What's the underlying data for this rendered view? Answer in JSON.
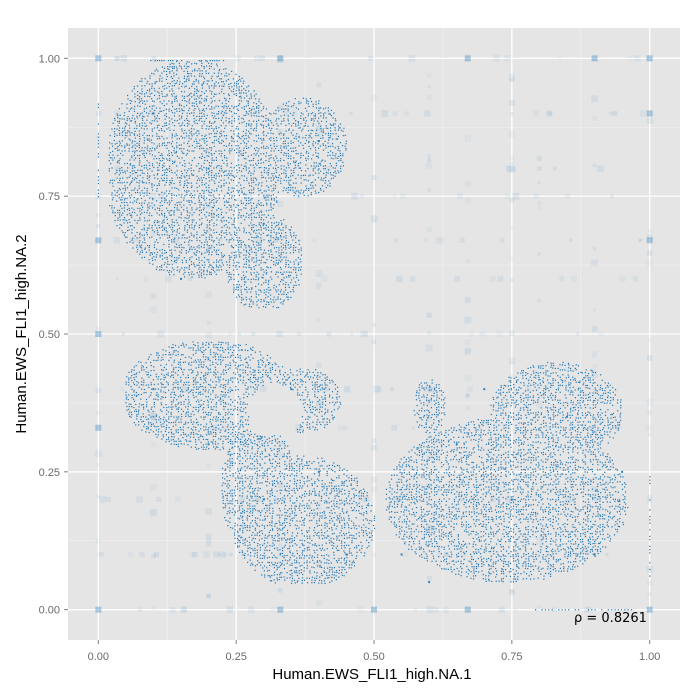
{
  "chart_data": {
    "type": "scatter",
    "title": "",
    "xlabel": "Human.EWS_FLI1_high.NA.1",
    "ylabel": "Human.EWS_FLI1_high.NA.2",
    "xlim": [
      -0.055,
      1.055
    ],
    "ylim": [
      -0.055,
      1.055
    ],
    "x_ticks": [
      0.0,
      0.25,
      0.5,
      0.75,
      1.0
    ],
    "x_tick_labels": [
      "0.00",
      "0.25",
      "0.50",
      "0.75",
      "1.00"
    ],
    "y_ticks": [
      0.0,
      0.25,
      0.5,
      0.75,
      1.0
    ],
    "y_tick_labels": [
      "0.00",
      "0.25",
      "0.50",
      "0.75",
      "1.00"
    ],
    "grid": true,
    "legend": "none",
    "annotation": {
      "text": "ρ = 0.8261",
      "x": 0.935,
      "y": -0.015
    },
    "point_color": "#1f77b4",
    "panel_background": "#e5e5e5",
    "clusters": [
      {
        "name": "upper-left cluster",
        "x_range": [
          0.02,
          0.45
        ],
        "y_range": [
          0.55,
          1.0
        ],
        "density": "high"
      },
      {
        "name": "middle-left cluster",
        "x_range": [
          0.05,
          0.45
        ],
        "y_range": [
          0.22,
          0.49
        ],
        "density": "high"
      },
      {
        "name": "lower-middle cluster",
        "x_range": [
          0.22,
          0.55
        ],
        "y_range": [
          0.05,
          0.32
        ],
        "density": "high"
      },
      {
        "name": "lower-right cluster",
        "x_range": [
          0.5,
          0.97
        ],
        "y_range": [
          0.03,
          0.45
        ],
        "density": "high"
      }
    ],
    "series": [
      {
        "values": [
          [
            0.0,
            0.0
          ],
          [
            0.0,
            1.0
          ],
          [
            1.0,
            1.0
          ],
          [
            1.0,
            0.0
          ],
          [
            0.0,
            0.5
          ],
          [
            0.5,
            0.0
          ],
          [
            0.33,
            1.0
          ],
          [
            0.67,
            1.0
          ],
          [
            0.9,
            1.0
          ],
          [
            1.0,
            0.67
          ],
          [
            1.0,
            0.9
          ],
          [
            0.0,
            0.67
          ],
          [
            0.0,
            0.33
          ],
          [
            0.33,
            0.0
          ],
          [
            0.67,
            0.0
          ],
          [
            0.1,
            0.9
          ],
          [
            0.2,
            0.8
          ],
          [
            0.15,
            0.6
          ],
          [
            0.3,
            0.7
          ],
          [
            0.4,
            0.85
          ],
          [
            0.1,
            0.4
          ],
          [
            0.2,
            0.3
          ],
          [
            0.35,
            0.4
          ],
          [
            0.3,
            0.2
          ],
          [
            0.45,
            0.1
          ],
          [
            0.4,
            0.25
          ],
          [
            0.55,
            0.1
          ],
          [
            0.65,
            0.3
          ],
          [
            0.75,
            0.2
          ],
          [
            0.85,
            0.35
          ],
          [
            0.9,
            0.1
          ],
          [
            0.7,
            0.4
          ],
          [
            0.6,
            0.05
          ],
          [
            0.95,
            0.25
          ]
        ]
      }
    ]
  }
}
